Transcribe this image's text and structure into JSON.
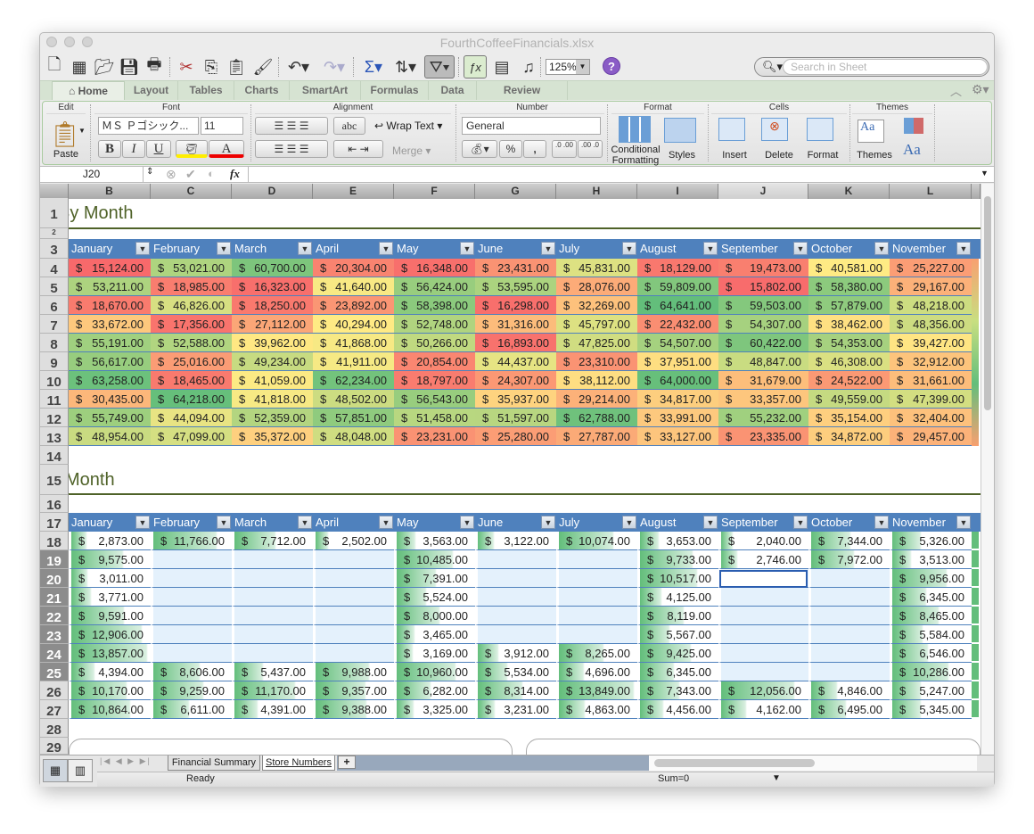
{
  "window": {
    "title": "FourthCoffeeFinancials.xlsx"
  },
  "toolbar": {
    "icons": [
      "new-icon",
      "templates-icon",
      "open-icon",
      "save-icon",
      "print-icon",
      "cut-icon",
      "copy-icon",
      "paste-icon",
      "format-painter-icon",
      "undo-icon",
      "redo-icon",
      "autosum-icon",
      "sort-icon",
      "filter-icon",
      "formula-builder-icon",
      "show-sidebar-icon",
      "media-browser-icon"
    ],
    "zoom": "125%",
    "help": "?",
    "search_placeholder": "Search in Sheet"
  },
  "ribbon_tabs": [
    "Home",
    "Layout",
    "Tables",
    "Charts",
    "SmartArt",
    "Formulas",
    "Data",
    "Review"
  ],
  "ribbon": {
    "groups": {
      "edit": "Edit",
      "font": "Font",
      "alignment": "Alignment",
      "number": "Number",
      "format": "Format",
      "cells": "Cells",
      "themes": "Themes"
    },
    "paste": "Paste",
    "font_name": "ＭＳ Ｐゴシック...",
    "font_size": "11",
    "bold": "B",
    "italic": "I",
    "underline": "U",
    "font_color": "A",
    "abc": "abc",
    "wrap_text": "Wrap Text",
    "merge": "Merge",
    "number_format": "General",
    "percent": "%",
    "comma": ",",
    "inc_decimal": ".0 .00",
    "dec_decimal": ".00 .0",
    "conditional_formatting": "Conditional Formatting",
    "styles": "Styles",
    "insert": "Insert",
    "delete": "Delete",
    "format": "Format",
    "themes": "Themes",
    "theme_fonts": "Aa"
  },
  "formula_bar": {
    "name_box": "J20",
    "fx": "fx",
    "value": ""
  },
  "columns": [
    "B",
    "C",
    "D",
    "E",
    "F",
    "G",
    "H",
    "I",
    "J",
    "K",
    "L"
  ],
  "selected_column": "J",
  "sheet": {
    "title1": "By Month",
    "title2": "Month",
    "months": [
      "January",
      "February",
      "March",
      "April",
      "May",
      "June",
      "July",
      "August",
      "September",
      "October",
      "November"
    ],
    "currency": "$",
    "colors": {
      "low": "#F8696B",
      "mid": "#FFEB84",
      "high": "#63BE7B",
      "header": "#4F81BD",
      "databar": "#63BE7B",
      "empty": "#E4F1FC"
    },
    "table1": [
      [
        "15,124.00",
        "53,021.00",
        "60,700.00",
        "20,304.00",
        "16,348.00",
        "23,431.00",
        "45,831.00",
        "18,129.00",
        "19,473.00",
        "40,581.00",
        "25,227.00"
      ],
      [
        "53,211.00",
        "18,985.00",
        "16,323.00",
        "41,640.00",
        "56,424.00",
        "53,595.00",
        "28,076.00",
        "59,809.00",
        "15,802.00",
        "58,380.00",
        "29,167.00"
      ],
      [
        "18,670.00",
        "46,826.00",
        "18,250.00",
        "23,892.00",
        "58,398.00",
        "16,298.00",
        "32,269.00",
        "64,641.00",
        "59,503.00",
        "57,879.00",
        "48,218.00"
      ],
      [
        "33,672.00",
        "17,356.00",
        "27,112.00",
        "40,294.00",
        "52,748.00",
        "31,316.00",
        "45,797.00",
        "22,432.00",
        "54,307.00",
        "38,462.00",
        "48,356.00"
      ],
      [
        "55,191.00",
        "52,588.00",
        "39,962.00",
        "41,868.00",
        "50,266.00",
        "16,893.00",
        "47,825.00",
        "54,507.00",
        "60,422.00",
        "54,353.00",
        "39,427.00"
      ],
      [
        "56,617.00",
        "25,016.00",
        "49,234.00",
        "41,911.00",
        "20,854.00",
        "44,437.00",
        "23,310.00",
        "37,951.00",
        "48,847.00",
        "46,308.00",
        "32,912.00"
      ],
      [
        "63,258.00",
        "18,465.00",
        "41,059.00",
        "62,234.00",
        "18,797.00",
        "24,307.00",
        "38,112.00",
        "64,000.00",
        "31,679.00",
        "24,522.00",
        "31,661.00"
      ],
      [
        "30,435.00",
        "64,218.00",
        "41,818.00",
        "48,502.00",
        "56,543.00",
        "35,937.00",
        "29,214.00",
        "34,817.00",
        "33,357.00",
        "49,559.00",
        "47,399.00"
      ],
      [
        "55,749.00",
        "44,094.00",
        "52,359.00",
        "57,851.00",
        "51,458.00",
        "51,597.00",
        "62,788.00",
        "33,991.00",
        "55,232.00",
        "35,154.00",
        "32,404.00"
      ],
      [
        "48,954.00",
        "47,099.00",
        "35,372.00",
        "48,048.00",
        "23,231.00",
        "25,280.00",
        "27,787.00",
        "33,127.00",
        "23,335.00",
        "34,872.00",
        "29,457.00"
      ]
    ],
    "table2": [
      [
        "2,873.00",
        "11,766.00",
        "7,712.00",
        "2,502.00",
        "3,563.00",
        "3,122.00",
        "10,074.00",
        "3,653.00",
        "2,040.00",
        "7,344.00",
        "5,326.00"
      ],
      [
        "9,575.00",
        null,
        null,
        null,
        "10,485.00",
        null,
        null,
        "9,733.00",
        "2,746.00",
        "7,972.00",
        "3,513.00"
      ],
      [
        "3,011.00",
        null,
        null,
        null,
        "7,391.00",
        null,
        null,
        "10,517.00",
        null,
        null,
        "9,956.00"
      ],
      [
        "3,771.00",
        null,
        null,
        null,
        "5,524.00",
        null,
        null,
        "4,125.00",
        null,
        null,
        "6,345.00"
      ],
      [
        "9,591.00",
        null,
        null,
        null,
        "8,000.00",
        null,
        null,
        "8,119.00",
        null,
        null,
        "8,465.00"
      ],
      [
        "12,906.00",
        null,
        null,
        null,
        "3,465.00",
        null,
        null,
        "5,567.00",
        null,
        null,
        "5,584.00"
      ],
      [
        "13,857.00",
        null,
        null,
        null,
        "3,169.00",
        "3,912.00",
        "8,265.00",
        "9,425.00",
        null,
        null,
        "6,546.00"
      ],
      [
        "4,394.00",
        "8,606.00",
        "5,437.00",
        "9,988.00",
        "10,960.00",
        "5,534.00",
        "4,696.00",
        "6,345.00",
        null,
        null,
        "10,286.00"
      ],
      [
        "10,170.00",
        "9,259.00",
        "11,170.00",
        "9,357.00",
        "6,282.00",
        "8,314.00",
        "13,849.00",
        "7,343.00",
        "12,056.00",
        "4,846.00",
        "5,247.00"
      ],
      [
        "10,864.00",
        "6,611.00",
        "4,391.00",
        "9,388.00",
        "3,325.00",
        "3,231.00",
        "4,863.00",
        "4,456.00",
        "4,162.00",
        "6,495.00",
        "5,345.00"
      ]
    ]
  },
  "sheet_tabs": [
    "Financial Summary",
    "Store Numbers"
  ],
  "active_sheet": "Store Numbers",
  "add_sheet": "+",
  "status": {
    "mode": "Ready",
    "sum": "Sum=0"
  }
}
